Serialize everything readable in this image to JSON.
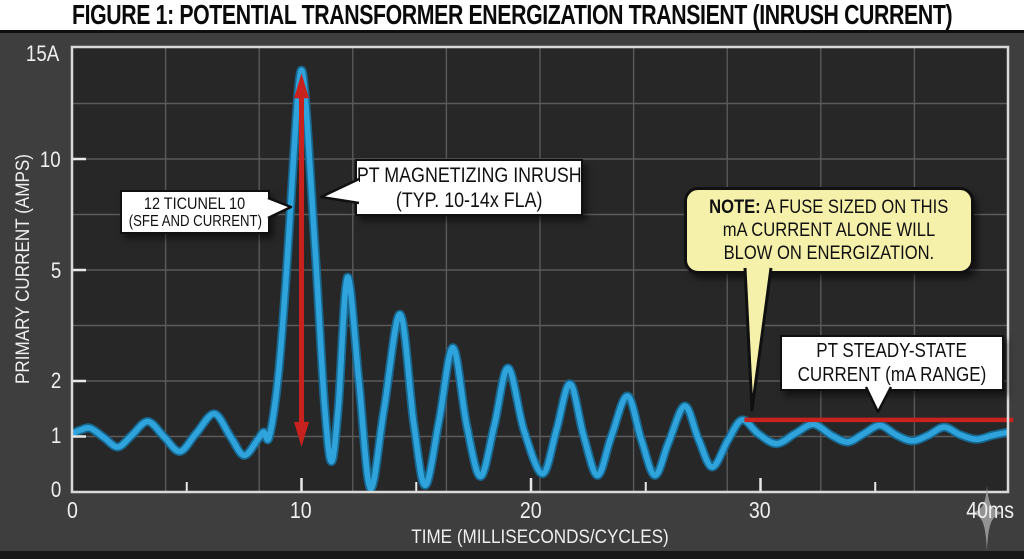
{
  "title": "FIGURE 1: POTENTIAL TRANSFORMER ENERGIZATION TRANSIENT (INRUSH CURRENT)",
  "chart": {
    "y_axis_label": "PRIMARY CURRENT (AMPS)",
    "x_axis_label": "TIME (MILLISECONDS/CYCLES)",
    "y_ticks": [
      "15A",
      "10",
      "5",
      "2",
      "1",
      "0"
    ],
    "x_ticks": [
      "0",
      "10",
      "20",
      "30",
      "40ms"
    ]
  },
  "callouts": {
    "cycle_box": {
      "line1": "12 TICUNEL 10",
      "line2": "(SFE AND CURRENT)"
    },
    "inrush_box": {
      "line1": "PT MAGNETIZING INRUSH",
      "line2": "(TYP. 10-14x FLA)"
    },
    "note_box": {
      "prefix": "NOTE:",
      "line1": " A FUSE SIZED ON THIS",
      "line2": "mA CURRENT ALONE WILL",
      "line3": "BLOW ON ENERGIZATION."
    },
    "steady_box": {
      "line1": "PT STEADY-STATE",
      "line2": "CURRENT (mA RANGE)"
    }
  },
  "chart_data": {
    "type": "line",
    "title": "FIGURE 1: POTENTIAL TRANSFORMER ENERGIZATION TRANSIENT (INRUSH CURRENT)",
    "xlabel": "TIME (MILLISECONDS/CYCLES)",
    "ylabel": "PRIMARY CURRENT (AMPS)",
    "x_range_ms": [
      0,
      40.8
    ],
    "y_tick_values": [
      0,
      1,
      2,
      5,
      10,
      15
    ],
    "y_axis_type": "nonlinear-stylized",
    "x_major_ticks_ms": [
      10,
      20,
      30
    ],
    "x_minor_ticks_ms": [
      5,
      15,
      25,
      35
    ],
    "grid": true,
    "colors": {
      "waveform": "#2fa3dc",
      "waveform_edge": "#17678f",
      "annotation_red": "#c8221f",
      "plot_bg": "#272727",
      "panel_bg": "#3e3e3e",
      "grid_line": "#5a5a5a"
    },
    "peak_amps": 14,
    "series": [
      {
        "name": "pt-primary-current",
        "points": [
          [
            0,
            1.05
          ],
          [
            0.4,
            1.12
          ],
          [
            0.8,
            1.15
          ],
          [
            1.4,
            0.98
          ],
          [
            2.0,
            0.81
          ],
          [
            2.6,
            1.02
          ],
          [
            3.3,
            1.27
          ],
          [
            4.0,
            1.0
          ],
          [
            4.7,
            0.73
          ],
          [
            5.4,
            1.05
          ],
          [
            6.2,
            1.41
          ],
          [
            6.9,
            1.0
          ],
          [
            7.5,
            0.66
          ],
          [
            8.1,
            0.95
          ],
          [
            8.35,
            1.08
          ],
          [
            8.6,
            1.0
          ],
          [
            9.0,
            2.2
          ],
          [
            9.35,
            5.0
          ],
          [
            9.65,
            10.0
          ],
          [
            9.85,
            13.0
          ],
          [
            10.0,
            14.0
          ],
          [
            10.15,
            13.0
          ],
          [
            10.35,
            10.0
          ],
          [
            10.65,
            5.0
          ],
          [
            11.0,
            1.6
          ],
          [
            11.3,
            0.55
          ],
          [
            11.6,
            1.5
          ],
          [
            12.0,
            4.8
          ],
          [
            12.5,
            2.0
          ],
          [
            13.0,
            0.07
          ],
          [
            13.6,
            1.5
          ],
          [
            14.3,
            3.8
          ],
          [
            14.9,
            1.2
          ],
          [
            15.4,
            0.12
          ],
          [
            16.0,
            1.3
          ],
          [
            16.6,
            2.9
          ],
          [
            17.2,
            1.2
          ],
          [
            17.8,
            0.28
          ],
          [
            18.4,
            1.2
          ],
          [
            19.0,
            2.35
          ],
          [
            19.7,
            1.1
          ],
          [
            20.5,
            0.33
          ],
          [
            21.1,
            1.1
          ],
          [
            21.7,
            1.95
          ],
          [
            22.3,
            1.0
          ],
          [
            22.9,
            0.3
          ],
          [
            23.5,
            1.0
          ],
          [
            24.2,
            1.73
          ],
          [
            24.8,
            0.95
          ],
          [
            25.4,
            0.3
          ],
          [
            26.0,
            0.9
          ],
          [
            26.7,
            1.55
          ],
          [
            27.3,
            0.95
          ],
          [
            27.9,
            0.45
          ],
          [
            28.6,
            0.95
          ],
          [
            29.2,
            1.3
          ],
          [
            29.9,
            1.05
          ],
          [
            30.7,
            0.87
          ],
          [
            31.5,
            1.05
          ],
          [
            32.3,
            1.22
          ],
          [
            33.1,
            1.02
          ],
          [
            33.8,
            0.9
          ],
          [
            34.5,
            1.05
          ],
          [
            35.2,
            1.2
          ],
          [
            35.9,
            1.03
          ],
          [
            36.6,
            0.92
          ],
          [
            37.3,
            1.02
          ],
          [
            38.0,
            1.17
          ],
          [
            38.7,
            1.03
          ],
          [
            39.4,
            0.95
          ],
          [
            40.1,
            1.02
          ],
          [
            40.8,
            1.08
          ]
        ]
      }
    ],
    "steady_state_line": {
      "from_ms": 29.3,
      "to_ms": 40.8,
      "amps": 1.3
    },
    "inrush_arrow": {
      "at_ms": 10,
      "from_amps": 14,
      "to_amps": 0.85
    }
  }
}
